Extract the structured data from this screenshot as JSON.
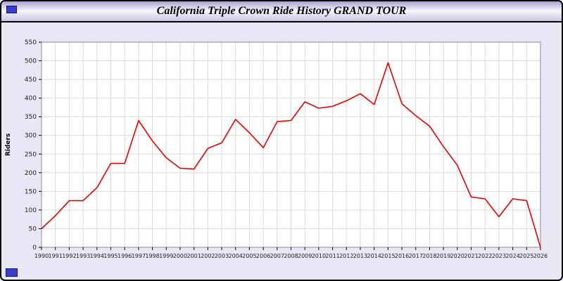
{
  "header": {
    "title": "California Triple Crown Ride History GRAND TOUR"
  },
  "colors": {
    "page_bg": "#e9e7f5",
    "plot_bg": "#ffffff",
    "grid": "#d9d9d9",
    "axis": "#8a8a8a",
    "line": "#ee0000",
    "tick_text": "#222222"
  },
  "chart_data": {
    "type": "line",
    "title": "California Triple Crown Ride History GRAND TOUR",
    "xlabel": "",
    "ylabel": "Riders",
    "ylim": [
      0,
      550
    ],
    "yticks": [
      0,
      50,
      100,
      150,
      200,
      250,
      300,
      350,
      400,
      450,
      500,
      550
    ],
    "grid": true,
    "legend": "none",
    "x": [
      1990,
      1991,
      1992,
      1993,
      1994,
      1995,
      1996,
      1997,
      1998,
      1999,
      2000,
      2001,
      2002,
      2003,
      2004,
      2005,
      2006,
      2007,
      2008,
      2009,
      2010,
      2011,
      2012,
      2013,
      2014,
      2015,
      2016,
      2017,
      2018,
      2019,
      2020,
      2021,
      2022,
      2023,
      2024,
      2025,
      2026
    ],
    "values": [
      50,
      85,
      125,
      125,
      160,
      225,
      225,
      340,
      285,
      240,
      212,
      210,
      265,
      280,
      343,
      307,
      267,
      337,
      340,
      390,
      373,
      378,
      393,
      412,
      383,
      495,
      385,
      353,
      325,
      270,
      220,
      135,
      130,
      82,
      130,
      125,
      0
    ]
  }
}
